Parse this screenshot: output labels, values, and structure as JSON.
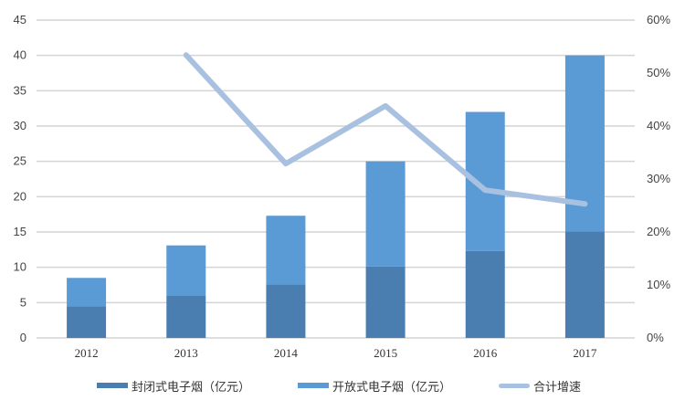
{
  "chart_data": {
    "type": "bar",
    "subtype": "stacked-bar-with-line",
    "title": "",
    "categories": [
      "2012",
      "2013",
      "2014",
      "2015",
      "2016",
      "2017"
    ],
    "series": [
      {
        "name": "封闭式电子烟（亿元）",
        "type": "bar",
        "axis": "left",
        "color": "#4a7eb0",
        "values": [
          4.5,
          6.0,
          7.6,
          10.1,
          12.3,
          15.1
        ]
      },
      {
        "name": "开放式电子烟（亿元）",
        "type": "bar",
        "axis": "left",
        "color": "#5b9bd5",
        "values": [
          4.0,
          7.1,
          9.7,
          14.9,
          19.7,
          24.9
        ]
      },
      {
        "name": "合计增速",
        "type": "line",
        "axis": "right",
        "color": "#a9c1e0",
        "values": [
          null,
          0.534,
          0.329,
          0.438,
          0.279,
          0.253
        ]
      }
    ],
    "totals": [
      8.5,
      13.1,
      17.3,
      25.0,
      32.0,
      40.0
    ],
    "left_axis": {
      "ylim": [
        0,
        45
      ],
      "ticks": [
        "0",
        "5",
        "10",
        "15",
        "20",
        "25",
        "30",
        "35",
        "40",
        "45"
      ]
    },
    "right_axis": {
      "ylim": [
        0,
        0.6
      ],
      "ticks": [
        "0%",
        "10%",
        "20%",
        "30%",
        "40%",
        "50%",
        "60%"
      ]
    },
    "xlabel": "",
    "ylabel": "",
    "grid": true,
    "legend_position": "bottom"
  },
  "legend": {
    "items": [
      {
        "label": "封闭式电子烟（亿元）",
        "color": "#4a7eb0"
      },
      {
        "label": "开放式电子烟（亿元）",
        "color": "#5b9bd5"
      },
      {
        "label": "合计增速",
        "color": "#a9c1e0"
      }
    ]
  }
}
